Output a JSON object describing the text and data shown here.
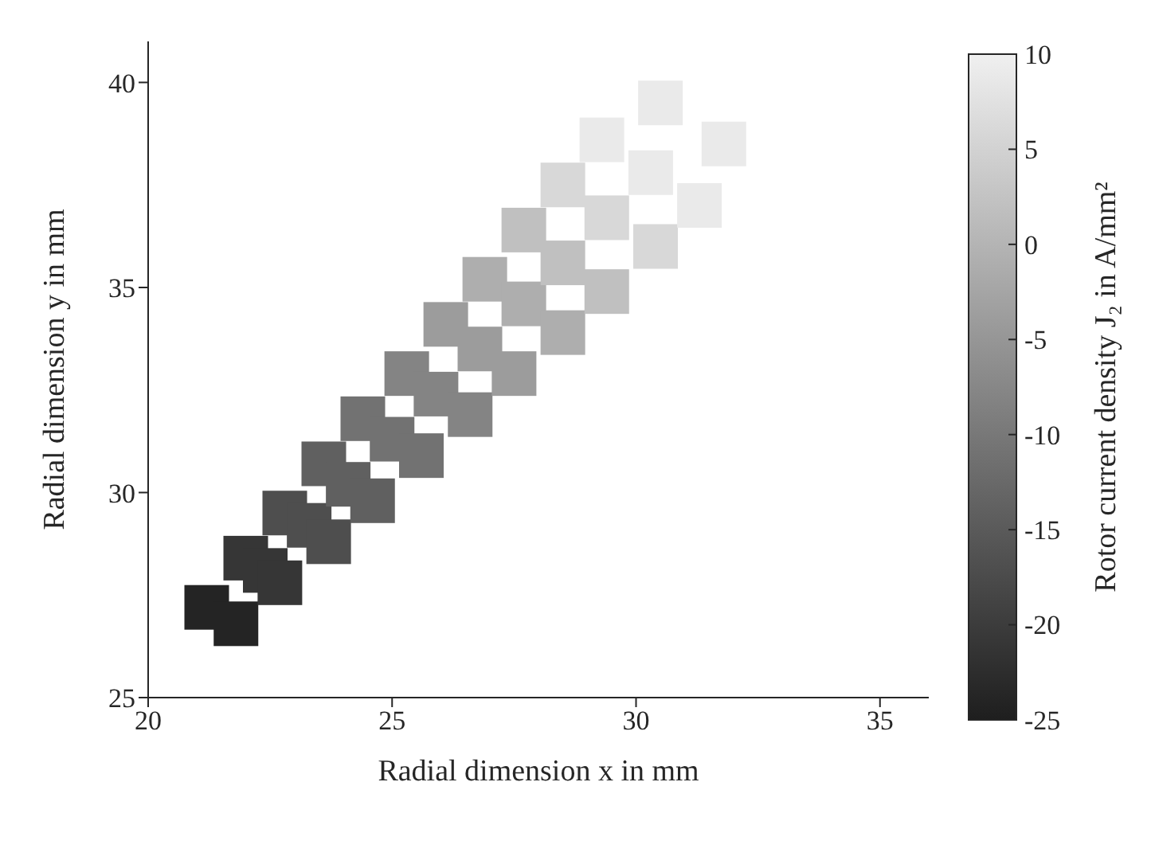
{
  "chart_data": {
    "type": "scatter",
    "xlabel": "Radial dimension x in mm",
    "ylabel": "Radial dimension y in mm",
    "clabel": "Rotor current density J₂ in A/mm²",
    "marker": "square",
    "grid": false,
    "xlim": [
      20,
      36
    ],
    "xticks": [
      20,
      25,
      30,
      35
    ],
    "ylim": [
      25,
      41
    ],
    "yticks": [
      25,
      30,
      35,
      40
    ],
    "clim": [
      -25,
      10
    ],
    "cticks": [
      -25,
      -20,
      -15,
      -10,
      -5,
      0,
      5,
      10
    ],
    "x": [
      21.2,
      21.8,
      22.0,
      22.4,
      22.7,
      22.8,
      23.3,
      23.7,
      23.6,
      24.1,
      24.6,
      24.4,
      25.0,
      25.6,
      25.3,
      25.9,
      26.6,
      26.1,
      26.8,
      27.5,
      26.9,
      27.7,
      28.5,
      27.7,
      28.5,
      29.4,
      28.5,
      29.4,
      30.4,
      29.3,
      30.3,
      31.3,
      30.5,
      31.8
    ],
    "values": [
      27.2,
      26.8,
      28.4,
      28.1,
      27.8,
      29.5,
      29.2,
      28.8,
      30.7,
      30.2,
      29.8,
      31.8,
      31.3,
      30.9,
      32.9,
      32.4,
      31.9,
      34.1,
      33.5,
      32.9,
      35.2,
      34.6,
      33.9,
      36.4,
      35.6,
      34.9,
      37.5,
      36.7,
      36.0,
      38.6,
      37.8,
      37.0,
      39.5,
      38.5
    ],
    "cvalues": [
      -24,
      -24,
      -21,
      -21,
      -21,
      -17,
      -17,
      -17,
      -14,
      -14,
      -14,
      -11,
      -11,
      -11,
      -8,
      -8,
      -8,
      -4,
      -4,
      -4,
      -1,
      -1,
      -1,
      2,
      2,
      2,
      6,
      6,
      6,
      9,
      9,
      9,
      9,
      9
    ]
  }
}
